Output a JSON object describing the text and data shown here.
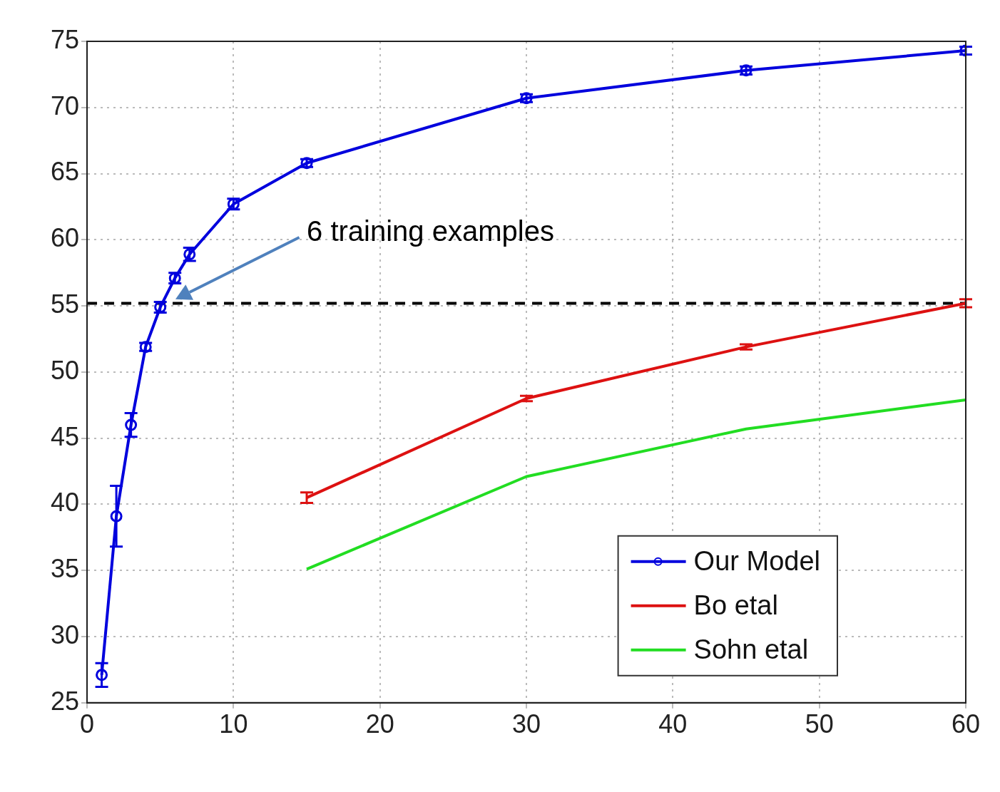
{
  "chart_data": {
    "type": "line",
    "xlim": [
      0,
      60
    ],
    "xticks": [
      0,
      10,
      20,
      30,
      40,
      50,
      60
    ],
    "ylim": [
      25,
      75
    ],
    "yticks": [
      25,
      30,
      35,
      40,
      45,
      50,
      55,
      60,
      65,
      70,
      75
    ],
    "grid": true,
    "legend": "bottom right",
    "series": [
      {
        "name": "Our Model",
        "color": "#0000dd",
        "marker": "circle",
        "x": [
          1,
          2,
          3,
          4,
          5,
          6,
          7,
          10,
          15,
          30,
          45,
          60
        ],
        "values": [
          27.1,
          39.1,
          46.0,
          51.9,
          54.9,
          57.1,
          58.9,
          62.7,
          65.8,
          70.7,
          72.8,
          74.3
        ],
        "errors": [
          0.9,
          2.3,
          0.9,
          0.3,
          0.4,
          0.4,
          0.5,
          0.4,
          0.3,
          0.3,
          0.3,
          0.3
        ]
      },
      {
        "name": "Bo etal",
        "color": "#dd1111",
        "x": [
          15,
          30,
          45,
          60
        ],
        "values": [
          40.5,
          48.0,
          51.9,
          55.2
        ],
        "errors": [
          0.4,
          0.2,
          0.2,
          0.3
        ]
      },
      {
        "name": "Sohn etal",
        "color": "#22dd22",
        "x": [
          15,
          30,
          45,
          60
        ],
        "values": [
          35.1,
          42.1,
          45.7,
          47.9
        ]
      }
    ],
    "ref_lines": [
      {
        "axis": "y",
        "value": 55.2,
        "color": "#000000",
        "line_style": "dashed"
      }
    ],
    "annotations": [
      "6 training examples"
    ]
  }
}
